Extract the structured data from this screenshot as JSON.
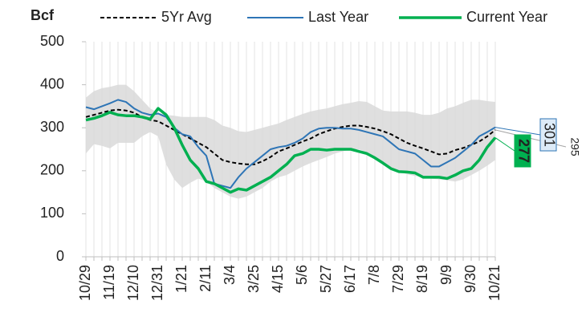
{
  "chart_data": {
    "type": "line",
    "y_title": "Bcf",
    "categories": [
      "10/29",
      null,
      null,
      "11/19",
      null,
      null,
      "12/10",
      null,
      null,
      "12/31",
      null,
      null,
      "1/21",
      null,
      null,
      "2/11",
      null,
      null,
      "3/4",
      null,
      null,
      "3/25",
      null,
      null,
      "4/15",
      null,
      null,
      "5/6",
      null,
      null,
      "5/27",
      null,
      null,
      "6/17",
      null,
      null,
      "7/8",
      null,
      null,
      "7/29",
      null,
      null,
      "8/19",
      null,
      null,
      "9/9",
      null,
      null,
      "9/30",
      null,
      null,
      "10/21"
    ],
    "ylim": [
      0,
      500
    ],
    "yticks": [
      0,
      100,
      200,
      300,
      400,
      500
    ],
    "grid": true,
    "range": {
      "color": "#d9d9d9",
      "high": [
        370,
        385,
        392,
        395,
        400,
        400,
        385,
        365,
        345,
        335,
        330,
        328,
        325,
        325,
        325,
        325,
        318,
        305,
        300,
        292,
        290,
        295,
        300,
        305,
        310,
        318,
        325,
        332,
        338,
        342,
        345,
        350,
        355,
        358,
        362,
        360,
        350,
        340,
        338,
        338,
        338,
        335,
        330,
        330,
        335,
        345,
        350,
        358,
        365,
        365,
        362,
        360
      ],
      "low": [
        240,
        262,
        258,
        252,
        265,
        265,
        265,
        280,
        290,
        280,
        215,
        180,
        160,
        172,
        182,
        175,
        160,
        150,
        140,
        135,
        140,
        150,
        160,
        175,
        185,
        190,
        200,
        210,
        218,
        225,
        232,
        240,
        245,
        250,
        250,
        242,
        232,
        220,
        205,
        198,
        192,
        188,
        185,
        182,
        180,
        178,
        175,
        180,
        190,
        200,
        212,
        225
      ]
    },
    "series": [
      {
        "name": "5Yr Avg",
        "color": "#000000",
        "dash": "5,3",
        "width": 2,
        "values": [
          325,
          330,
          335,
          340,
          342,
          340,
          335,
          325,
          318,
          315,
          305,
          295,
          285,
          275,
          265,
          255,
          240,
          225,
          220,
          217,
          215,
          215,
          222,
          232,
          245,
          252,
          260,
          268,
          275,
          285,
          292,
          298,
          302,
          305,
          305,
          302,
          298,
          292,
          285,
          275,
          265,
          258,
          252,
          245,
          238,
          240,
          248,
          253,
          260,
          268,
          280,
          295
        ]
      },
      {
        "name": "Last Year",
        "color": "#2e75b6",
        "width": 2,
        "values": [
          348,
          343,
          350,
          357,
          365,
          360,
          345,
          335,
          330,
          333,
          325,
          300,
          285,
          280,
          255,
          235,
          170,
          165,
          160,
          185,
          205,
          220,
          235,
          250,
          255,
          258,
          265,
          275,
          290,
          298,
          300,
          300,
          298,
          298,
          295,
          290,
          285,
          280,
          265,
          250,
          245,
          240,
          225,
          210,
          210,
          220,
          230,
          245,
          260,
          280,
          290,
          301
        ]
      },
      {
        "name": "Current Year",
        "color": "#00b050",
        "width": 3.5,
        "values": [
          318,
          322,
          328,
          336,
          330,
          328,
          328,
          325,
          320,
          345,
          330,
          300,
          260,
          225,
          205,
          175,
          170,
          160,
          150,
          158,
          155,
          165,
          175,
          185,
          200,
          215,
          235,
          240,
          250,
          250,
          248,
          250,
          250,
          250,
          245,
          240,
          230,
          218,
          205,
          198,
          197,
          195,
          185,
          185,
          185,
          182,
          190,
          200,
          205,
          225,
          255,
          277
        ]
      }
    ],
    "label_color": "#a6a6a6"
  }
}
